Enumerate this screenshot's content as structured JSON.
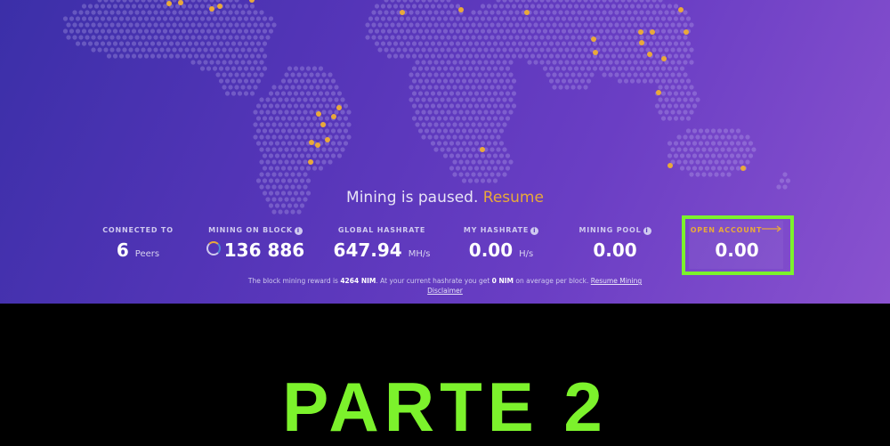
{
  "status": {
    "text": "Mining is paused.",
    "resume_label": "Resume"
  },
  "stats": [
    {
      "label": "CONNECTED TO",
      "value": "6",
      "unit": "Peers"
    },
    {
      "label": "MINING ON BLOCK",
      "value": "136 886",
      "unit": ""
    },
    {
      "label": "GLOBAL HASHRATE",
      "value": "647.94",
      "unit": "MH/s"
    },
    {
      "label": "MY HASHRATE",
      "value": "0.00",
      "unit": "H/s"
    },
    {
      "label": "MINING POOL",
      "value": "0.00",
      "unit": ""
    },
    {
      "label": "OPEN ACCOUNT",
      "value": "0.00",
      "unit": ""
    }
  ],
  "footer": {
    "text_before": "The block mining reward is",
    "reward": "4264 NIM",
    "text_middle": ". At your current hashrate you get",
    "expected": "0 NIM",
    "text_after": "on average per block.",
    "resume_mining_link": "Resume Mining",
    "disclaimer_link": "Disclaimer"
  },
  "overlay_caption": "PARTE 2",
  "colors": {
    "accent_orange": "#e9a93a",
    "highlight_green": "#7cf22c",
    "bg_purple": "#5535b8"
  }
}
